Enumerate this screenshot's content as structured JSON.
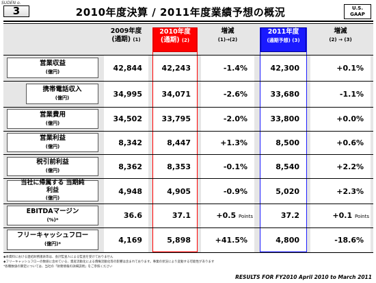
{
  "slide_label": "SUDEN o.",
  "page_number": "3",
  "title": "2010年度決算 / 2011年度業績予想の概況",
  "gaap_badge": {
    "line1": "U.S.",
    "line2": "GAAP"
  },
  "columns": [
    {
      "line1": "2009年度",
      "line2": "(通期)",
      "note": "(1)"
    },
    {
      "line1": "2010年度",
      "line2": "(通期)",
      "note": "(2)"
    },
    {
      "line1": "増減",
      "line2": "(1)→(2)",
      "note": ""
    },
    {
      "line1": "2011年度",
      "line2": "(通期予想)",
      "note": "(3)"
    },
    {
      "line1": "増減",
      "line2": "(2) → (3)",
      "note": ""
    }
  ],
  "rows": [
    {
      "label": "営業収益",
      "unit": "(億円)",
      "v": [
        "42,844",
        "42,243",
        "-1.4%",
        "42,300",
        "+0.1%"
      ]
    },
    {
      "label": "携帯電話収入",
      "unit": "(億円)",
      "v": [
        "34,995",
        "34,071",
        "-2.6%",
        "33,680",
        "-1.1%"
      ]
    },
    {
      "label": "営業費用",
      "unit": "(億円)",
      "v": [
        "34,502",
        "33,795",
        "-2.0%",
        "33,800",
        "+0.0%"
      ]
    },
    {
      "label": "営業利益",
      "unit": "(億円)",
      "v": [
        "8,342",
        "8,447",
        "+1.3%",
        "8,500",
        "+0.6%"
      ]
    },
    {
      "label": "税引前利益",
      "unit": "(億円)",
      "v": [
        "8,362",
        "8,353",
        "-0.1%",
        "8,540",
        "+2.2%"
      ]
    },
    {
      "label": "当社に帰属する 当期純利益",
      "unit": "(億円)",
      "v": [
        "4,948",
        "4,905",
        "-0.9%",
        "5,020",
        "+2.3%"
      ]
    },
    {
      "label": "EBITDAマージン",
      "unit": "(%)*",
      "v": [
        "36.6",
        "37.1",
        "+0.5",
        "37.2",
        "+0.1"
      ],
      "pts": "Points"
    },
    {
      "label": "フリーキャッシュフロー",
      "unit": "(億円)*",
      "v": [
        "4,169",
        "5,898",
        "+41.5%",
        "4,800",
        "-18.6%"
      ]
    }
  ],
  "footnotes": [
    "◆本資料における連結財務諸表等は、会計監査人による監査を受けておりません",
    "◆フリーキャッシュフローの数値に含めている、資産流動化による債権流動化等の影響は含まれております。事業の状況により変動する可能性があります",
    "*各種数値の算定については、当社の「財務情報の詳細説明」をご参照ください"
  ],
  "footer": "RESULTS FOR FY2010   April 2010 to March 2011"
}
